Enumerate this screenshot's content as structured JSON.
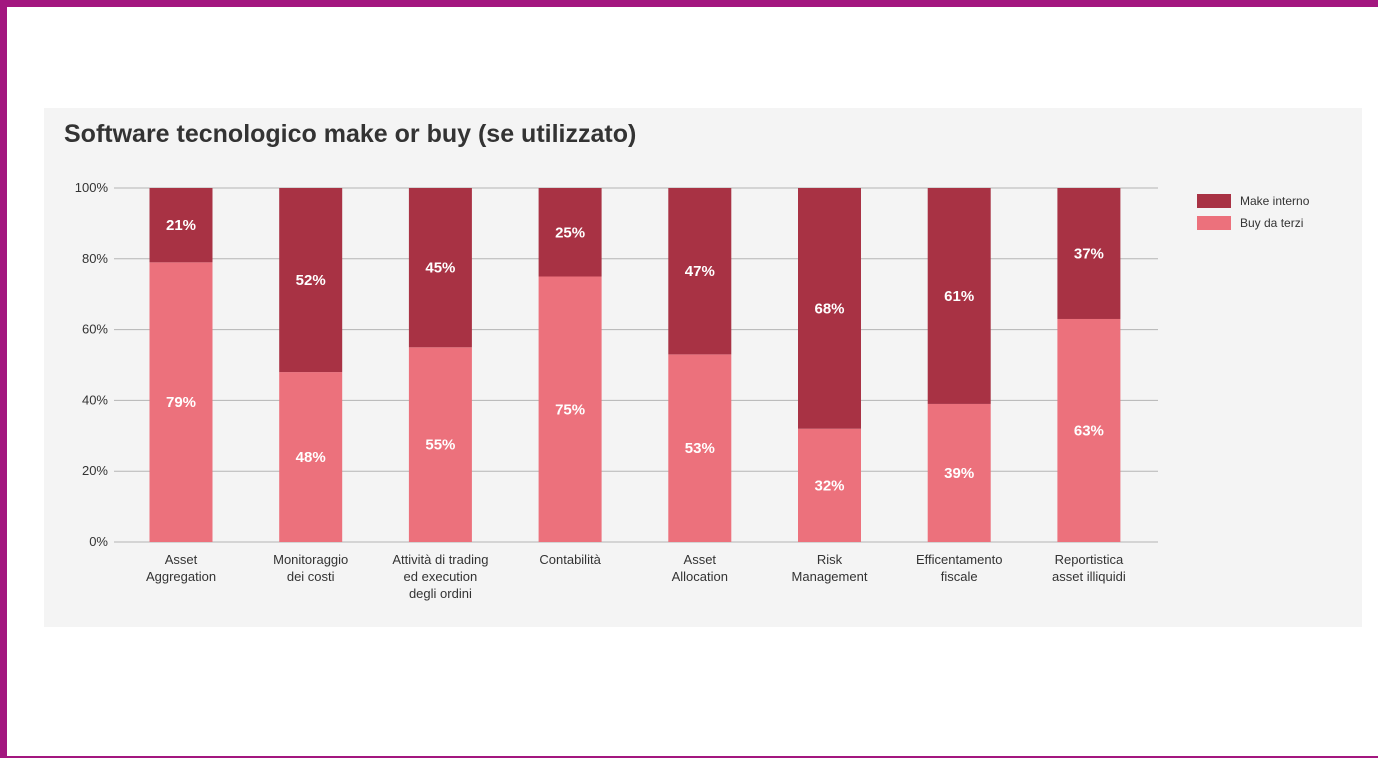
{
  "chart_data": {
    "type": "bar",
    "stacked": true,
    "title": "Software tecnologico make or buy (se utilizzato)",
    "xlabel": "",
    "ylabel": "",
    "ylim": [
      0,
      100
    ],
    "y_ticks": [
      "0%",
      "20%",
      "40%",
      "60%",
      "80%",
      "100%"
    ],
    "grid": true,
    "legend_position": "top-right",
    "categories": [
      [
        "Asset",
        "Aggregation"
      ],
      [
        "Monitoraggio",
        "dei costi"
      ],
      [
        "Attività di trading",
        "ed execution",
        "degli ordini"
      ],
      [
        "Contabilità"
      ],
      [
        "Asset",
        "Allocation"
      ],
      [
        "Risk",
        "Management"
      ],
      [
        "Efficentamento",
        "fiscale"
      ],
      [
        "Reportistica",
        "asset illiquidi"
      ]
    ],
    "series": [
      {
        "name": "Buy da terzi",
        "color": "#ec717c",
        "values": [
          79,
          48,
          55,
          75,
          53,
          32,
          39,
          63
        ],
        "labels": [
          "79%",
          "48%",
          "55%",
          "75%",
          "53%",
          "32%",
          "39%",
          "63%"
        ]
      },
      {
        "name": "Make interno",
        "color": "#a83244",
        "values": [
          21,
          52,
          45,
          25,
          47,
          68,
          61,
          37
        ],
        "labels": [
          "21%",
          "52%",
          "45%",
          "25%",
          "47%",
          "68%",
          "61%",
          "37%"
        ]
      }
    ],
    "legend": [
      {
        "name": "Make interno",
        "color": "#a83244"
      },
      {
        "name": "Buy da terzi",
        "color": "#ec717c"
      }
    ]
  },
  "colors": {
    "frame": "#a3177f",
    "panel_background": "#f4f4f4",
    "grid": "#b5b5b5"
  }
}
